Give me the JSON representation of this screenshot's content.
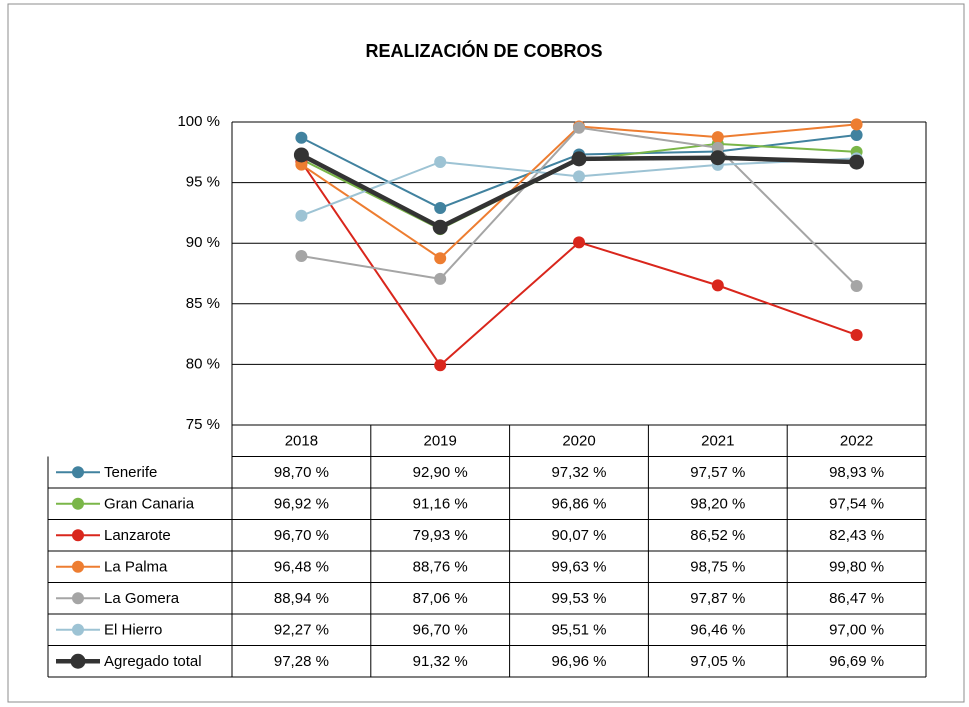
{
  "chart_data": {
    "type": "line",
    "title": "REALIZACIÓN DE COBROS",
    "categories": [
      "2018",
      "2019",
      "2020",
      "2021",
      "2022"
    ],
    "ylim": [
      75,
      100
    ],
    "yticks": [
      {
        "value": 75,
        "label": "75 %"
      },
      {
        "value": 80,
        "label": "80 %"
      },
      {
        "value": 85,
        "label": "85 %"
      },
      {
        "value": 90,
        "label": "90 %"
      },
      {
        "value": 95,
        "label": "95 %"
      },
      {
        "value": 100,
        "label": "100 %"
      }
    ],
    "grid": true,
    "series": [
      {
        "name": "Tenerife",
        "color": "#41829f",
        "values": [
          98.7,
          92.9,
          97.32,
          97.57,
          98.93
        ],
        "value_labels": [
          "98,70 %",
          "92,90 %",
          "97,32 %",
          "97,57 %",
          "98,93 %"
        ]
      },
      {
        "name": "Gran Canaria",
        "color": "#7ab648",
        "values": [
          96.92,
          91.16,
          96.86,
          98.2,
          97.54
        ],
        "value_labels": [
          "96,92 %",
          "91,16 %",
          "96,86 %",
          "98,20 %",
          "97,54 %"
        ]
      },
      {
        "name": "Lanzarote",
        "color": "#d9261c",
        "values": [
          96.7,
          79.93,
          90.07,
          86.52,
          82.43
        ],
        "value_labels": [
          "96,70 %",
          "79,93 %",
          "90,07 %",
          "86,52 %",
          "82,43 %"
        ]
      },
      {
        "name": "La Palma",
        "color": "#ed7d31",
        "values": [
          96.48,
          88.76,
          99.63,
          98.75,
          99.8
        ],
        "value_labels": [
          "96,48 %",
          "88,76 %",
          "99,63 %",
          "98,75 %",
          "99,80 %"
        ]
      },
      {
        "name": "La Gomera",
        "color": "#a5a5a5",
        "values": [
          88.94,
          87.06,
          99.53,
          97.87,
          86.47
        ],
        "value_labels": [
          "88,94 %",
          "87,06 %",
          "99,53 %",
          "97,87 %",
          "86,47 %"
        ]
      },
      {
        "name": "El Hierro",
        "color": "#9dc3d4",
        "values": [
          92.27,
          96.7,
          95.51,
          96.46,
          97.0
        ],
        "value_labels": [
          "92,27 %",
          "96,70 %",
          "95,51 %",
          "96,46 %",
          "97,00 %"
        ]
      },
      {
        "name": "Agregado total",
        "color": "#333333",
        "values": [
          97.28,
          91.32,
          96.96,
          97.05,
          96.69
        ],
        "value_labels": [
          "97,28 %",
          "91,32 %",
          "96,96 %",
          "97,05 %",
          "96,69 %"
        ]
      }
    ]
  }
}
